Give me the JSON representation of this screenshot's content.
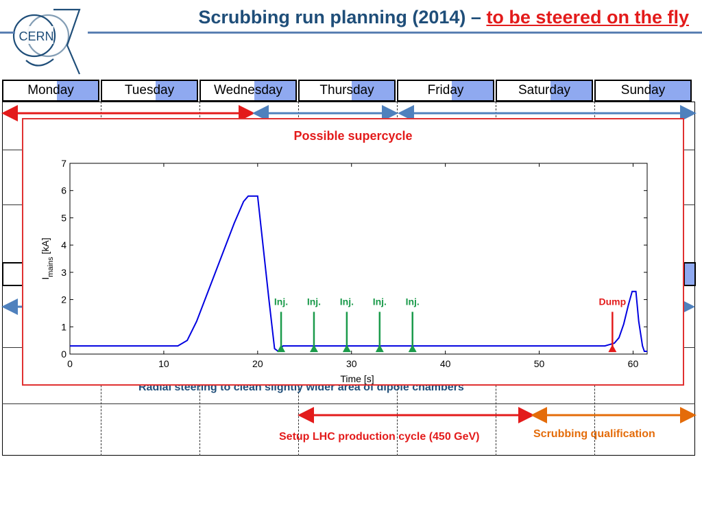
{
  "header": {
    "title_main": "Scrubbing run planning (2014) – ",
    "title_emph": "to be steered on the fly",
    "logo_text": "CERN"
  },
  "days": [
    {
      "label": "Monday"
    },
    {
      "label": "Tuesday"
    },
    {
      "label": "Wednesday"
    },
    {
      "label": "Thursday"
    },
    {
      "label": "Friday"
    },
    {
      "label": "Saturday"
    },
    {
      "label": "Sunday"
    }
  ],
  "schedule": {
    "radial_text": "Radial steering to clean slightly wider area of dipole chambers",
    "lhc_setup_text": "Setup LHC production cycle (450 GeV)",
    "qualification_text": "Scrubbing qualification",
    "colors": {
      "red": "#e31b1b",
      "blue": "#4f81bd",
      "orange": "#e46c0a",
      "navy": "#1f4e79",
      "day_highlight": "#8fa9f0"
    }
  },
  "popup": {
    "title": "Possible supercycle"
  },
  "chart_data": {
    "type": "line",
    "title": "",
    "xlabel": "Time [s]",
    "ylabel_main": "I",
    "ylabel_sub": "mains",
    "ylabel_unit": " [kA]",
    "xlim": [
      0,
      61.5
    ],
    "ylim": [
      0,
      7
    ],
    "xticks": [
      0,
      10,
      20,
      30,
      40,
      50,
      60
    ],
    "yticks": [
      0,
      1,
      2,
      3,
      4,
      5,
      6,
      7
    ],
    "grid": false,
    "series": [
      {
        "color": "#0000e0",
        "x": [
          0,
          11.5,
          12.5,
          13.5,
          14.5,
          15.5,
          16.5,
          17.5,
          18.5,
          19,
          20,
          21.2,
          21.8,
          22.2,
          22.7,
          57,
          58,
          58.5,
          59,
          59.5,
          59.9,
          60.3,
          60.6,
          61,
          61.2,
          61.5
        ],
        "y": [
          0.3,
          0.3,
          0.5,
          1.2,
          2.1,
          3.0,
          3.9,
          4.8,
          5.6,
          5.8,
          5.8,
          2.0,
          0.2,
          0.1,
          0.3,
          0.3,
          0.4,
          0.6,
          1.1,
          1.8,
          2.3,
          2.3,
          1.2,
          0.3,
          0.1,
          0.1
        ]
      }
    ],
    "annotations": [
      {
        "text": "Inj.",
        "x": 22.5,
        "y_tip": 0.35,
        "y_tail": 1.55,
        "color": "#1a9a4a"
      },
      {
        "text": "Inj.",
        "x": 26,
        "y_tip": 0.35,
        "y_tail": 1.55,
        "color": "#1a9a4a"
      },
      {
        "text": "Inj.",
        "x": 29.5,
        "y_tip": 0.35,
        "y_tail": 1.55,
        "color": "#1a9a4a"
      },
      {
        "text": "Inj.",
        "x": 33,
        "y_tip": 0.35,
        "y_tail": 1.55,
        "color": "#1a9a4a"
      },
      {
        "text": "Inj.",
        "x": 36.5,
        "y_tip": 0.35,
        "y_tail": 1.55,
        "color": "#1a9a4a"
      },
      {
        "text": "Dump",
        "x": 57.8,
        "y_tip": 0.35,
        "y_tail": 1.55,
        "color": "#e31b1b"
      }
    ]
  }
}
